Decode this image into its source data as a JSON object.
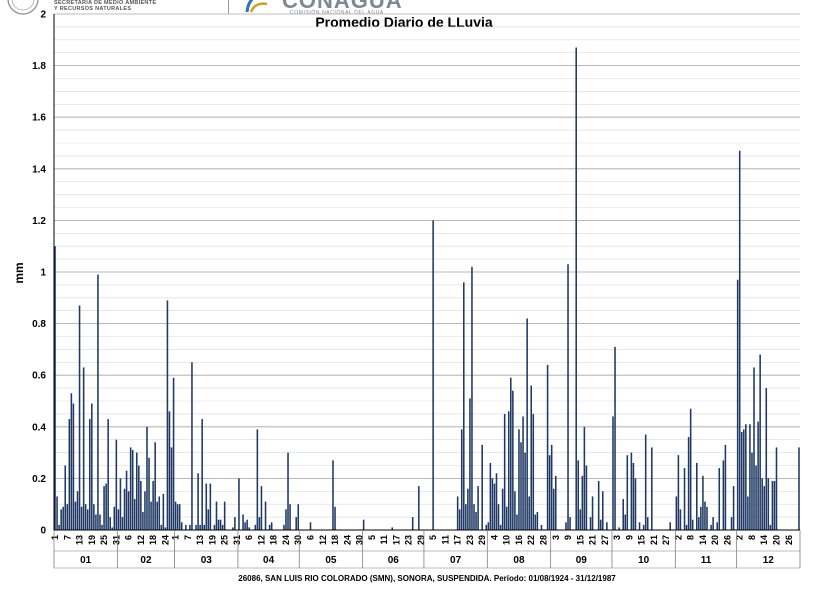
{
  "header": {
    "secretaria_line1": "SECRETARÍA DE MEDIO AMBIENTE",
    "secretaria_line2": "Y RECURSOS NATURALES",
    "logo_word": "CONAGUA",
    "logo_sub": "COMISIÓN NACIONAL DEL AGUA"
  },
  "colors": {
    "bar": "#1f3864",
    "grid": "#d9d9d9",
    "axis": "#000000"
  },
  "chart_data": {
    "type": "bar",
    "title": "Promedio Diario de LLuvia",
    "ylabel": "mm",
    "ylim": [
      0,
      2
    ],
    "yticks": [
      0,
      0.2,
      0.4,
      0.6,
      0.8,
      1,
      1.2,
      1.4,
      1.6,
      1.8,
      2
    ],
    "grid": true,
    "footer": "26086, SAN LUIS RIO COLORADO (SMN), SONORA, SUSPENDIDA. Período: 01/08/1924 - 31/12/1987",
    "months": [
      {
        "label": "01",
        "days": 31,
        "ticks": [
          "1",
          "7",
          "13",
          "19",
          "25",
          "31"
        ],
        "values": [
          1.1,
          0.13,
          0.02,
          0.08,
          0.09,
          0.25,
          0.1,
          0.43,
          0.53,
          0.49,
          0.11,
          0.15,
          0.87,
          0.09,
          0.63,
          0.1,
          0.08,
          0.43,
          0.49,
          0.1,
          0.06,
          0.99,
          0.06,
          0.02,
          0.17,
          0.18,
          0.43,
          0.05,
          0.01,
          0.09,
          0.35
        ]
      },
      {
        "label": "02",
        "days": 28,
        "ticks": [
          "6",
          "12",
          "18",
          "24"
        ],
        "values": [
          0.08,
          0.2,
          0.05,
          0.16,
          0.23,
          0.15,
          0.32,
          0.31,
          0.12,
          0.3,
          0.25,
          0.19,
          0.07,
          0.15,
          0.4,
          0.28,
          0.11,
          0.19,
          0.34,
          0.11,
          0.13,
          0.02,
          0.14,
          0.01,
          0.89,
          0.46,
          0.32,
          0.59
        ]
      },
      {
        "label": "03",
        "days": 31,
        "ticks": [
          "1",
          "7",
          "13",
          "19",
          "25",
          "31"
        ],
        "values": [
          0.11,
          0.1,
          0.1,
          0.03,
          0.0,
          0.02,
          0.0,
          0.02,
          0.65,
          0.0,
          0.02,
          0.22,
          0.02,
          0.43,
          0.02,
          0.18,
          0.08,
          0.18,
          0.0,
          0.02,
          0.11,
          0.04,
          0.04,
          0.02,
          0.11,
          0.0,
          0.0,
          0.0,
          0.01,
          0.05,
          0.0
        ]
      },
      {
        "label": "04",
        "days": 30,
        "ticks": [
          "6",
          "12",
          "18",
          "24",
          "30"
        ],
        "values": [
          0.2,
          0.0,
          0.06,
          0.03,
          0.04,
          0.01,
          0.0,
          0.0,
          0.02,
          0.39,
          0.05,
          0.17,
          0.0,
          0.11,
          0.0,
          0.02,
          0.03,
          0.0,
          0.0,
          0.0,
          0.0,
          0.0,
          0.02,
          0.08,
          0.3,
          0.1,
          0.0,
          0.0,
          0.05,
          0.1
        ]
      },
      {
        "label": "05",
        "days": 31,
        "ticks": [
          "6",
          "12",
          "18",
          "24",
          "30"
        ],
        "values": [
          0.0,
          0.0,
          0.0,
          0.0,
          0.0,
          0.03,
          0.0,
          0.0,
          0.0,
          0.0,
          0.0,
          0.0,
          0.0,
          0.0,
          0.0,
          0.0,
          0.27,
          0.09,
          0.0,
          0.0,
          0.0,
          0.0,
          0.0,
          0.0,
          0.0,
          0.0,
          0.0,
          0.0,
          0.0,
          0.0,
          0.0
        ]
      },
      {
        "label": "06",
        "days": 30,
        "ticks": [
          "5",
          "11",
          "17",
          "23",
          "29"
        ],
        "values": [
          0.04,
          0.0,
          0.0,
          0.0,
          0.0,
          0.0,
          0.0,
          0.0,
          0.0,
          0.0,
          0.0,
          0.0,
          0.0,
          0.0,
          0.01,
          0.0,
          0.0,
          0.0,
          0.0,
          0.0,
          0.0,
          0.0,
          0.0,
          0.0,
          0.05,
          0.0,
          0.0,
          0.17,
          0.0,
          0.0
        ]
      },
      {
        "label": "07",
        "days": 31,
        "ticks": [
          "5",
          "11",
          "17",
          "23",
          "29"
        ],
        "values": [
          0.0,
          0.0,
          0.0,
          0.0,
          1.2,
          0.0,
          0.0,
          0.0,
          0.0,
          0.0,
          0.0,
          0.0,
          0.0,
          0.0,
          0.0,
          0.0,
          0.13,
          0.08,
          0.39,
          0.96,
          0.1,
          0.16,
          0.51,
          1.02,
          0.1,
          0.07,
          0.17,
          0.0,
          0.33,
          0.0,
          0.02
        ]
      },
      {
        "label": "08",
        "days": 31,
        "ticks": [
          "4",
          "10",
          "16",
          "22",
          "28"
        ],
        "values": [
          0.03,
          0.26,
          0.2,
          0.18,
          0.22,
          0.1,
          0.02,
          0.16,
          0.45,
          0.09,
          0.46,
          0.59,
          0.54,
          0.15,
          0.06,
          0.39,
          0.34,
          0.44,
          0.3,
          0.82,
          0.13,
          0.56,
          0.45,
          0.06,
          0.07,
          0.0,
          0.02,
          0.0,
          0.0,
          0.64,
          0.29
        ]
      },
      {
        "label": "09",
        "days": 30,
        "ticks": [
          "3",
          "9",
          "15",
          "21",
          "27"
        ],
        "values": [
          0.33,
          0.16,
          0.21,
          0.0,
          0.0,
          0.0,
          0.0,
          0.03,
          1.03,
          0.05,
          0.0,
          0.0,
          1.87,
          0.27,
          0.08,
          0.21,
          0.4,
          0.25,
          0.0,
          0.05,
          0.13,
          0.0,
          0.0,
          0.19,
          0.04,
          0.15,
          0.0,
          0.03,
          0.0,
          0.0
        ]
      },
      {
        "label": "10",
        "days": 31,
        "ticks": [
          "3",
          "9",
          "15",
          "21",
          "27"
        ],
        "values": [
          0.44,
          0.71,
          0.0,
          0.01,
          0.0,
          0.12,
          0.06,
          0.29,
          0.0,
          0.3,
          0.26,
          0.2,
          0.0,
          0.03,
          0.0,
          0.02,
          0.37,
          0.05,
          0.0,
          0.32,
          0.0,
          0.0,
          0.0,
          0.0,
          0.0,
          0.0,
          0.0,
          0.0,
          0.03,
          0.0,
          0.0
        ]
      },
      {
        "label": "11",
        "days": 30,
        "ticks": [
          "2",
          "8",
          "14",
          "20",
          "26"
        ],
        "values": [
          0.13,
          0.29,
          0.08,
          0.0,
          0.24,
          0.02,
          0.36,
          0.47,
          0.04,
          0.0,
          0.26,
          0.05,
          0.09,
          0.21,
          0.11,
          0.09,
          0.0,
          0.02,
          0.05,
          0.0,
          0.03,
          0.24,
          0.0,
          0.27,
          0.33,
          0.0,
          0.0,
          0.05,
          0.17,
          0.0
        ]
      },
      {
        "label": "12",
        "days": 31,
        "ticks": [
          "2",
          "8",
          "14",
          "20",
          "26"
        ],
        "values": [
          0.97,
          1.47,
          0.38,
          0.39,
          0.41,
          0.13,
          0.41,
          0.3,
          0.63,
          0.25,
          0.42,
          0.68,
          0.2,
          0.17,
          0.55,
          0.2,
          0.02,
          0.19,
          0.19,
          0.32,
          0.0,
          0.0,
          0.0,
          0.0,
          0.0,
          0.0,
          0.0,
          0.0,
          0.0,
          0.0,
          0.32
        ]
      }
    ]
  }
}
